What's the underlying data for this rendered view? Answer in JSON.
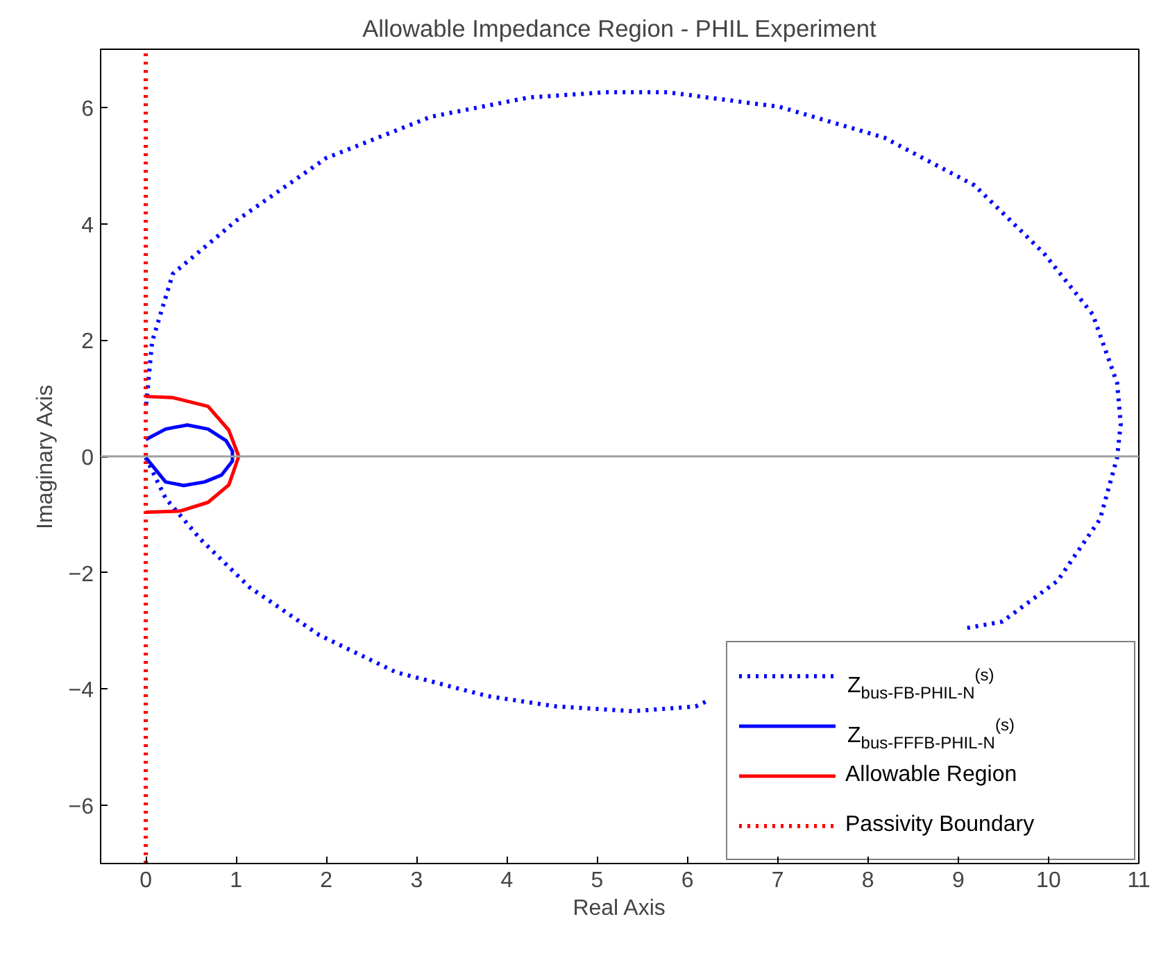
{
  "chart_data": {
    "type": "line",
    "title": "Allowable Impedance Region - PHIL Experiment",
    "xlabel": "Real Axis",
    "ylabel": "Imaginary Axis",
    "xlim": [
      -0.5,
      11
    ],
    "ylim": [
      -7,
      7
    ],
    "xticks": [
      0,
      1,
      2,
      3,
      4,
      5,
      6,
      7,
      8,
      9,
      10,
      11
    ],
    "yticks": [
      -6,
      -4,
      -2,
      0,
      2,
      4,
      6
    ],
    "grid": false,
    "legend": "bottom right",
    "series": [
      {
        "name": "Z$_{bus-FB-PHIL-N}$$^{(s)}$",
        "color": "#0000ff",
        "line_style": "dotted",
        "x": [
          0,
          0.22,
          0.61,
          1.15,
          1.92,
          2.77,
          3.78,
          4.55,
          5.4,
          6.09,
          6.2,
          null,
          9.1,
          9.49,
          10.1,
          10.57,
          10.76,
          10.8,
          10.76,
          10.49,
          9.95,
          9.18,
          8.18,
          7.02,
          5.78,
          5.09,
          4.24,
          3.16,
          2.0,
          1.0,
          0.3,
          0.07,
          0
        ],
        "values": [
          -0.02,
          -0.72,
          -1.43,
          -2.25,
          -3.07,
          -3.71,
          -4.12,
          -4.3,
          -4.38,
          -4.3,
          -4.22,
          null,
          -2.95,
          -2.84,
          -2.14,
          -1.08,
          -0.02,
          0.56,
          1.26,
          2.44,
          3.49,
          4.66,
          5.48,
          6.01,
          6.26,
          6.26,
          6.17,
          5.84,
          5.13,
          4.05,
          3.14,
          1.97,
          0.8
        ]
      },
      {
        "name": "Z$_{bus-FFFB-PHIL-N}$$^{(s)}$",
        "color": "#0000ff",
        "line_style": "solid",
        "x": [
          0,
          0.22,
          0.46,
          0.69,
          0.89,
          0.96,
          0.96,
          0.84,
          0.65,
          0.42,
          0.22,
          0
        ],
        "values": [
          0.29,
          0.47,
          0.54,
          0.47,
          0.27,
          0.09,
          -0.08,
          -0.32,
          -0.44,
          -0.5,
          -0.44,
          -0.02
        ]
      },
      {
        "name": "Allowable Region",
        "color": "#ff0000",
        "line_style": "solid",
        "x": [
          0,
          0.3,
          0.69,
          0.92,
          1.03,
          0.92,
          0.69,
          0.38,
          0
        ],
        "values": [
          1.03,
          1.01,
          0.86,
          0.45,
          0.0,
          -0.49,
          -0.79,
          -0.94,
          -0.96
        ]
      },
      {
        "name": "Passivity Boundary",
        "color": "#ff0000",
        "line_style": "dotted",
        "x": [
          0,
          0
        ],
        "values": [
          -7,
          7
        ]
      }
    ],
    "ref_lines": [
      {
        "axis": "y",
        "value": 0,
        "color": "#a0a0a0",
        "line_style": "solid"
      }
    ]
  }
}
